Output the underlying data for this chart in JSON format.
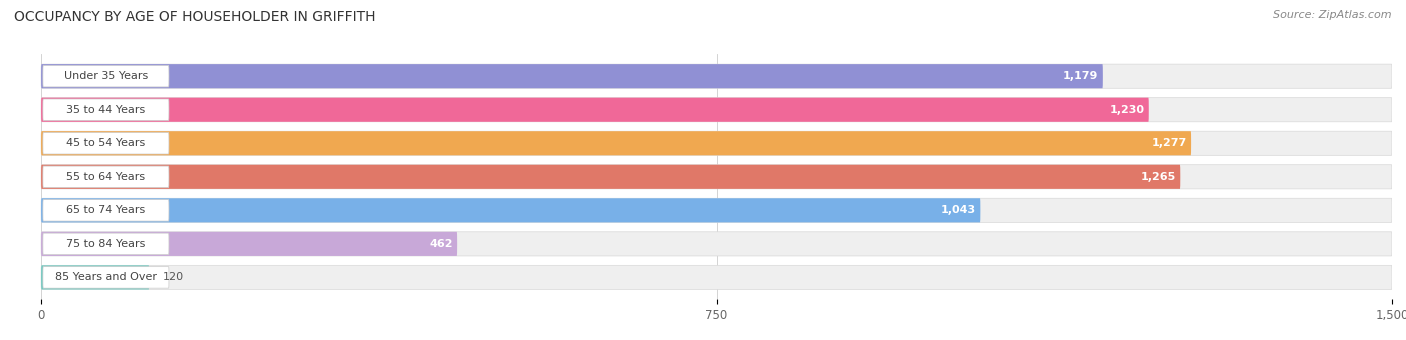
{
  "title": "Occupancy by Age of Householder in Griffith",
  "title_display": "OCCUPANCY BY AGE OF HOUSEHOLDER IN GRIFFITH",
  "source": "Source: ZipAtlas.com",
  "categories": [
    "Under 35 Years",
    "35 to 44 Years",
    "45 to 54 Years",
    "55 to 64 Years",
    "65 to 74 Years",
    "75 to 84 Years",
    "85 Years and Over"
  ],
  "values": [
    1179,
    1230,
    1277,
    1265,
    1043,
    462,
    120
  ],
  "bar_colors": [
    "#9090d4",
    "#f06898",
    "#f0a850",
    "#e07868",
    "#78b0e8",
    "#c8a8d8",
    "#70c8c0"
  ],
  "xlim": [
    -30,
    1500
  ],
  "xmin": 0,
  "xmax": 1500,
  "xticks": [
    0,
    750,
    1500
  ],
  "value_labels": [
    "1,179",
    "1,230",
    "1,277",
    "1,265",
    "1,043",
    "462",
    "120"
  ],
  "background_color": "#ffffff",
  "row_bg_color": "#f0f0f0",
  "label_box_color": "#ffffff",
  "title_fontsize": 10,
  "source_fontsize": 8,
  "label_fontsize": 8,
  "value_fontsize": 8,
  "value_inside_threshold": 300
}
